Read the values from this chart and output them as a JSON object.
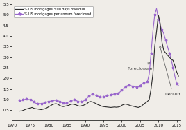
{
  "title": "",
  "xlabel": "",
  "ylabel": "",
  "xlim": [
    1970,
    2016
  ],
  "ylim": [
    0,
    5.5
  ],
  "yticks": [
    0.5,
    1.0,
    1.5,
    2.0,
    2.5,
    3.0,
    3.5,
    4.0,
    4.5,
    5.0,
    5.5
  ],
  "xticks": [
    1970,
    1975,
    1980,
    1985,
    1990,
    1995,
    2000,
    2005,
    2010,
    2015
  ],
  "legend_labels": [
    "% US mortgages >90 days overdue",
    "% US mortgages per annum foreclosed"
  ],
  "line1_color": "#2a2a2a",
  "line2_color": "#9966cc",
  "annotation_foreclosure": "Foreclosure",
  "annotation_default": "Default",
  "default_x": [
    1972.0,
    1972.5,
    1973.0,
    1973.5,
    1974.0,
    1974.5,
    1975.0,
    1975.5,
    1976.0,
    1976.5,
    1977.0,
    1977.5,
    1978.0,
    1978.5,
    1979.0,
    1979.5,
    1980.0,
    1980.5,
    1981.0,
    1981.5,
    1982.0,
    1982.5,
    1983.0,
    1983.5,
    1984.0,
    1984.5,
    1985.0,
    1985.5,
    1986.0,
    1986.5,
    1987.0,
    1987.5,
    1988.0,
    1988.5,
    1989.0,
    1989.5,
    1990.0,
    1990.5,
    1991.0,
    1991.5,
    1992.0,
    1992.5,
    1993.0,
    1993.5,
    1994.0,
    1994.5,
    1995.0,
    1995.5,
    1996.0,
    1996.5,
    1997.0,
    1997.5,
    1998.0,
    1998.5,
    1999.0,
    1999.5,
    2000.0,
    2000.5,
    2001.0,
    2001.5,
    2002.0,
    2002.5,
    2003.0,
    2003.5,
    2004.0,
    2004.5,
    2005.0,
    2005.5,
    2006.0,
    2006.5,
    2007.0,
    2007.5,
    2008.0,
    2008.5,
    2009.0,
    2009.5,
    2010.0,
    2010.5,
    2011.0,
    2011.5,
    2012.0,
    2012.5,
    2013.0,
    2013.5,
    2014.0,
    2014.5,
    2015.0,
    2015.5
  ],
  "default_y": [
    0.45,
    0.46,
    0.48,
    0.52,
    0.55,
    0.57,
    0.6,
    0.62,
    0.58,
    0.56,
    0.55,
    0.53,
    0.52,
    0.54,
    0.56,
    0.6,
    0.65,
    0.7,
    0.75,
    0.78,
    0.8,
    0.77,
    0.72,
    0.68,
    0.66,
    0.68,
    0.7,
    0.72,
    0.76,
    0.78,
    0.76,
    0.74,
    0.7,
    0.68,
    0.7,
    0.72,
    0.76,
    0.8,
    0.88,
    0.9,
    0.88,
    0.84,
    0.8,
    0.75,
    0.72,
    0.68,
    0.66,
    0.65,
    0.64,
    0.63,
    0.62,
    0.63,
    0.64,
    0.63,
    0.64,
    0.66,
    0.72,
    0.76,
    0.78,
    0.76,
    0.73,
    0.7,
    0.68,
    0.66,
    0.64,
    0.62,
    0.65,
    0.7,
    0.78,
    0.84,
    0.9,
    1.0,
    1.5,
    2.2,
    3.5,
    4.2,
    5.0,
    4.6,
    3.7,
    3.3,
    3.2,
    3.1,
    3.0,
    2.9,
    2.85,
    2.6,
    2.3,
    2.1
  ],
  "foreclosure_x": [
    1972.0,
    1972.5,
    1973.0,
    1973.5,
    1974.0,
    1974.5,
    1975.0,
    1975.5,
    1976.0,
    1976.5,
    1977.0,
    1977.5,
    1978.0,
    1978.5,
    1979.0,
    1979.5,
    1980.0,
    1980.5,
    1981.0,
    1981.5,
    1982.0,
    1982.5,
    1983.0,
    1983.5,
    1984.0,
    1984.5,
    1985.0,
    1985.5,
    1986.0,
    1986.5,
    1987.0,
    1987.5,
    1988.0,
    1988.5,
    1989.0,
    1989.5,
    1990.0,
    1990.5,
    1991.0,
    1991.5,
    1992.0,
    1992.5,
    1993.0,
    1993.5,
    1994.0,
    1994.5,
    1995.0,
    1995.5,
    1996.0,
    1996.5,
    1997.0,
    1997.5,
    1998.0,
    1998.5,
    1999.0,
    1999.5,
    2000.0,
    2000.5,
    2001.0,
    2001.5,
    2002.0,
    2002.5,
    2003.0,
    2003.5,
    2004.0,
    2004.5,
    2005.0,
    2005.5,
    2006.0,
    2006.5,
    2007.0,
    2007.5,
    2008.0,
    2008.5,
    2009.0,
    2009.5,
    2010.0,
    2010.5,
    2011.0,
    2011.5,
    2012.0,
    2012.5,
    2013.0,
    2013.5,
    2014.0,
    2014.5,
    2015.0,
    2015.5
  ],
  "foreclosure_y": [
    0.95,
    0.97,
    0.98,
    1.0,
    1.02,
    1.0,
    0.98,
    0.95,
    0.88,
    0.82,
    0.8,
    0.8,
    0.8,
    0.82,
    0.85,
    0.88,
    0.9,
    0.92,
    0.93,
    0.95,
    0.97,
    0.95,
    0.9,
    0.86,
    0.82,
    0.82,
    0.84,
    0.88,
    0.92,
    0.96,
    0.98,
    0.96,
    0.9,
    0.88,
    0.9,
    0.92,
    0.98,
    1.05,
    1.15,
    1.2,
    1.25,
    1.22,
    1.18,
    1.15,
    1.12,
    1.1,
    1.12,
    1.15,
    1.18,
    1.2,
    1.22,
    1.24,
    1.26,
    1.28,
    1.3,
    1.35,
    1.45,
    1.52,
    1.6,
    1.65,
    1.68,
    1.65,
    1.62,
    1.6,
    1.58,
    1.6,
    1.65,
    1.72,
    1.78,
    1.82,
    1.85,
    2.2,
    3.2,
    4.2,
    5.0,
    5.3,
    4.8,
    4.5,
    4.3,
    4.1,
    3.8,
    3.5,
    3.2,
    2.9,
    2.5,
    2.1,
    1.75,
    1.65
  ]
}
